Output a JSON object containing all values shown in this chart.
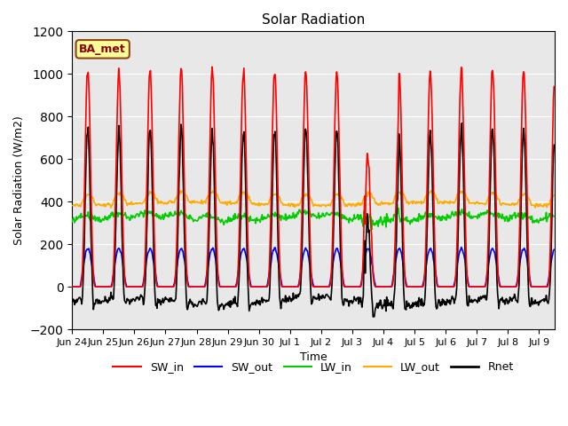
{
  "title": "Solar Radiation",
  "xlabel": "Time",
  "ylabel": "Solar Radiation (W/m2)",
  "ylim": [
    -200,
    1200
  ],
  "yticks": [
    -200,
    0,
    200,
    400,
    600,
    800,
    1000,
    1200
  ],
  "num_days": 15.5,
  "x_tick_labels": [
    "Jun 24",
    "Jun 25",
    "Jun 26",
    "Jun 27",
    "Jun 28",
    "Jun 29",
    "Jun 30",
    "Jul 1",
    "Jul 2",
    "Jul 3",
    "Jul 4",
    "Jul 5",
    "Jul 6",
    "Jul 7",
    "Jul 8",
    "Jul 9"
  ],
  "colors": {
    "SW_in": "#ff0000",
    "SW_out": "#0000ff",
    "LW_in": "#00cc00",
    "LW_out": "#ffaa00",
    "Rnet": "#000000"
  },
  "annotation_text": "BA_met",
  "annotation_bg": "#ffff99",
  "annotation_border": "#8B4513",
  "background_color": "#e8e8e8",
  "figsize": [
    6.4,
    4.8
  ],
  "dpi": 100
}
